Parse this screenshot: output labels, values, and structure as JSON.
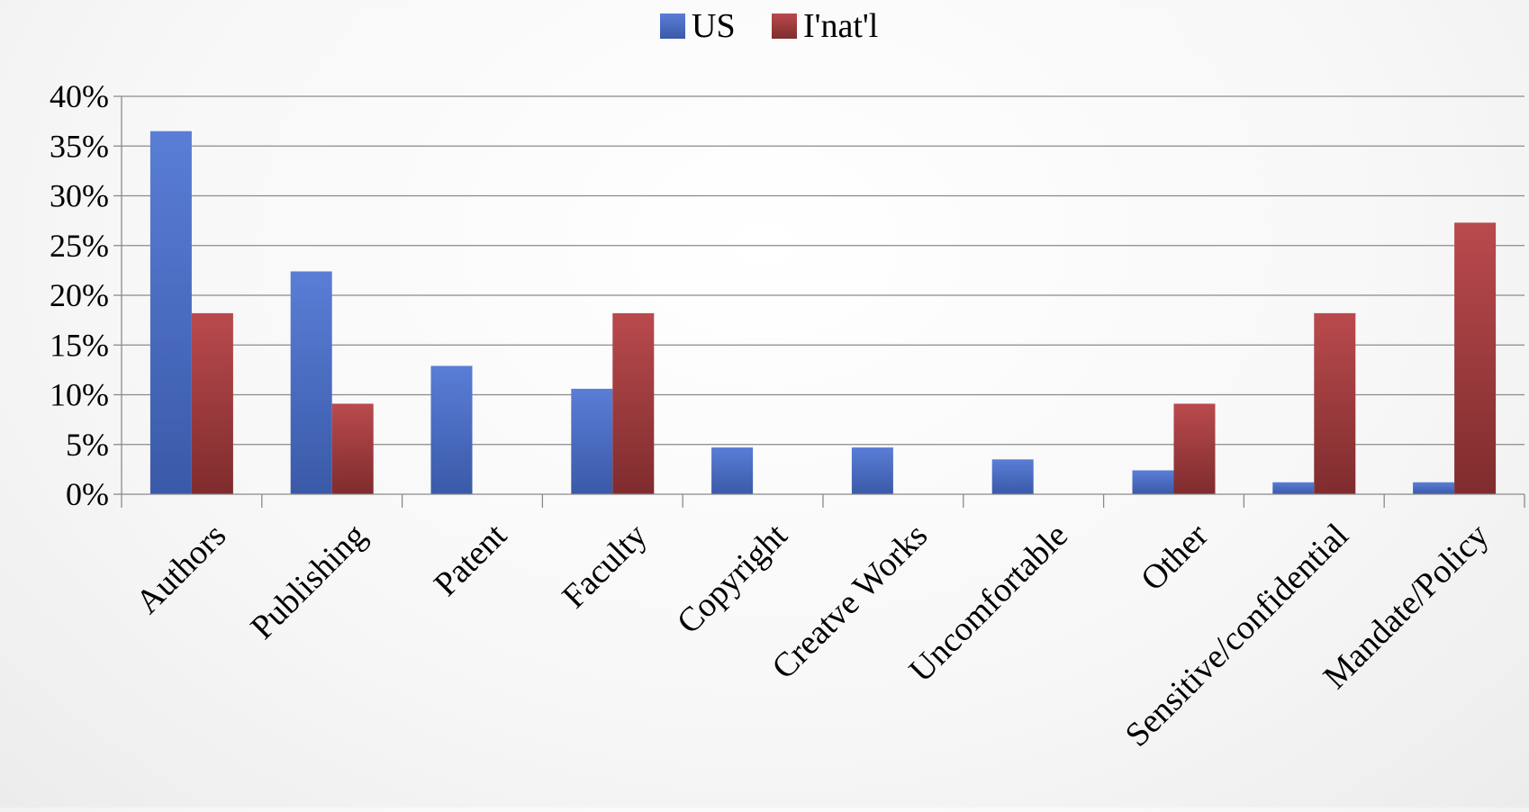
{
  "chart_data": {
    "type": "bar",
    "categories": [
      "Authors",
      "Publishing",
      "Patent",
      "Faculty",
      "Copyright",
      "Creatve Works",
      "Uncomfortable",
      "Other",
      "Sensitive/confidential",
      "Mandate/Policy"
    ],
    "series": [
      {
        "name": "US",
        "color": "#4f70c4",
        "values": [
          36.5,
          22.4,
          12.9,
          10.6,
          4.7,
          4.7,
          3.5,
          2.4,
          1.2,
          1.2
        ]
      },
      {
        "name": "I'nat'l",
        "color": "#b04548",
        "values": [
          18.2,
          9.1,
          0,
          18.2,
          0,
          0,
          0,
          9.1,
          18.2,
          27.3
        ]
      }
    ],
    "yticks": [
      "0%",
      "5%",
      "10%",
      "15%",
      "20%",
      "25%",
      "30%",
      "35%",
      "40%"
    ],
    "ylim": [
      0,
      40
    ],
    "grid": true,
    "legend": "top-center",
    "title": "",
    "xlabel": "",
    "ylabel": ""
  }
}
